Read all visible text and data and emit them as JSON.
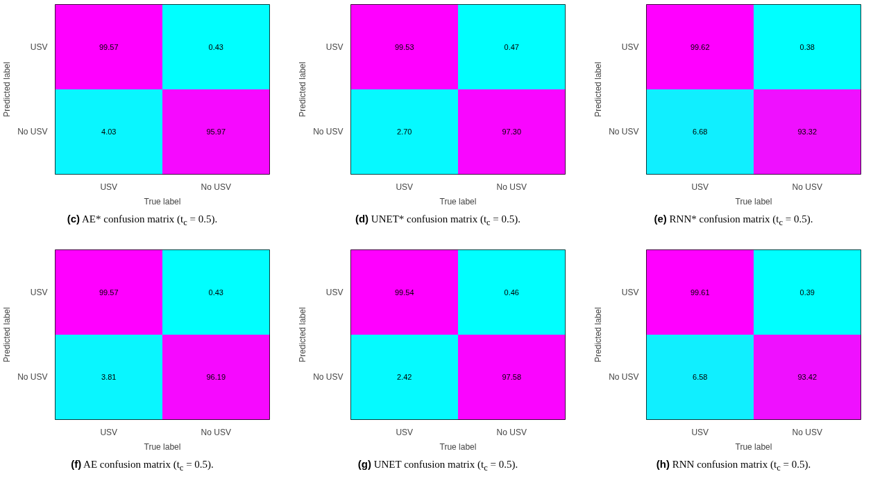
{
  "chart_data": [
    {
      "type": "heatmap",
      "categories": [
        "USV",
        "No USV"
      ],
      "y_categories": [
        "USV",
        "No USV"
      ],
      "cells": [
        [
          99.57,
          0.43
        ],
        [
          4.03,
          95.97
        ]
      ],
      "xlabel": "True label",
      "ylabel": "Predicted label",
      "data_labels": true,
      "annotations": [
        "(c) AE* confusion matrix (t$_{c}$ = 0.5)."
      ]
    },
    {
      "type": "heatmap",
      "categories": [
        "USV",
        "No USV"
      ],
      "y_categories": [
        "USV",
        "No USV"
      ],
      "cells": [
        [
          99.53,
          0.47
        ],
        [
          2.7,
          97.3
        ]
      ],
      "cell_labels": [
        [
          "99.53",
          "0.47"
        ],
        [
          "2.70",
          "97.30"
        ]
      ],
      "xlabel": "True label",
      "ylabel": "Predicted label",
      "data_labels": true,
      "annotations": [
        "(d) UNET* confusion matrix (t$_{c}$ = 0.5)."
      ]
    },
    {
      "type": "heatmap",
      "categories": [
        "USV",
        "No USV"
      ],
      "y_categories": [
        "USV",
        "No USV"
      ],
      "cells": [
        [
          99.62,
          0.38
        ],
        [
          6.68,
          93.32
        ]
      ],
      "xlabel": "True label",
      "ylabel": "Predicted label",
      "data_labels": true,
      "annotations": [
        "(e) RNN* confusion matrix (t$_{c}$ = 0.5)."
      ]
    },
    {
      "type": "heatmap",
      "categories": [
        "USV",
        "No USV"
      ],
      "y_categories": [
        "USV",
        "No USV"
      ],
      "cells": [
        [
          99.57,
          0.43
        ],
        [
          3.81,
          96.19
        ]
      ],
      "xlabel": "True label",
      "ylabel": "Predicted label",
      "data_labels": true,
      "annotations": [
        "(f) AE confusion matrix (t$_{c}$ = 0.5)."
      ]
    },
    {
      "type": "heatmap",
      "categories": [
        "USV",
        "No USV"
      ],
      "y_categories": [
        "USV",
        "No USV"
      ],
      "cells": [
        [
          99.54,
          0.46
        ],
        [
          2.42,
          97.58
        ]
      ],
      "xlabel": "True label",
      "ylabel": "Predicted label",
      "data_labels": true,
      "annotations": [
        "(g) UNET confusion matrix (t$_{c}$ = 0.5)."
      ]
    },
    {
      "type": "heatmap",
      "categories": [
        "USV",
        "No USV"
      ],
      "y_categories": [
        "USV",
        "No USV"
      ],
      "cells": [
        [
          99.61,
          0.39
        ],
        [
          6.58,
          93.42
        ]
      ],
      "xlabel": "True label",
      "ylabel": "Predicted label",
      "data_labels": true,
      "annotations": [
        "(h) RNN confusion matrix (t$_{c}$ = 0.5)."
      ]
    }
  ]
}
